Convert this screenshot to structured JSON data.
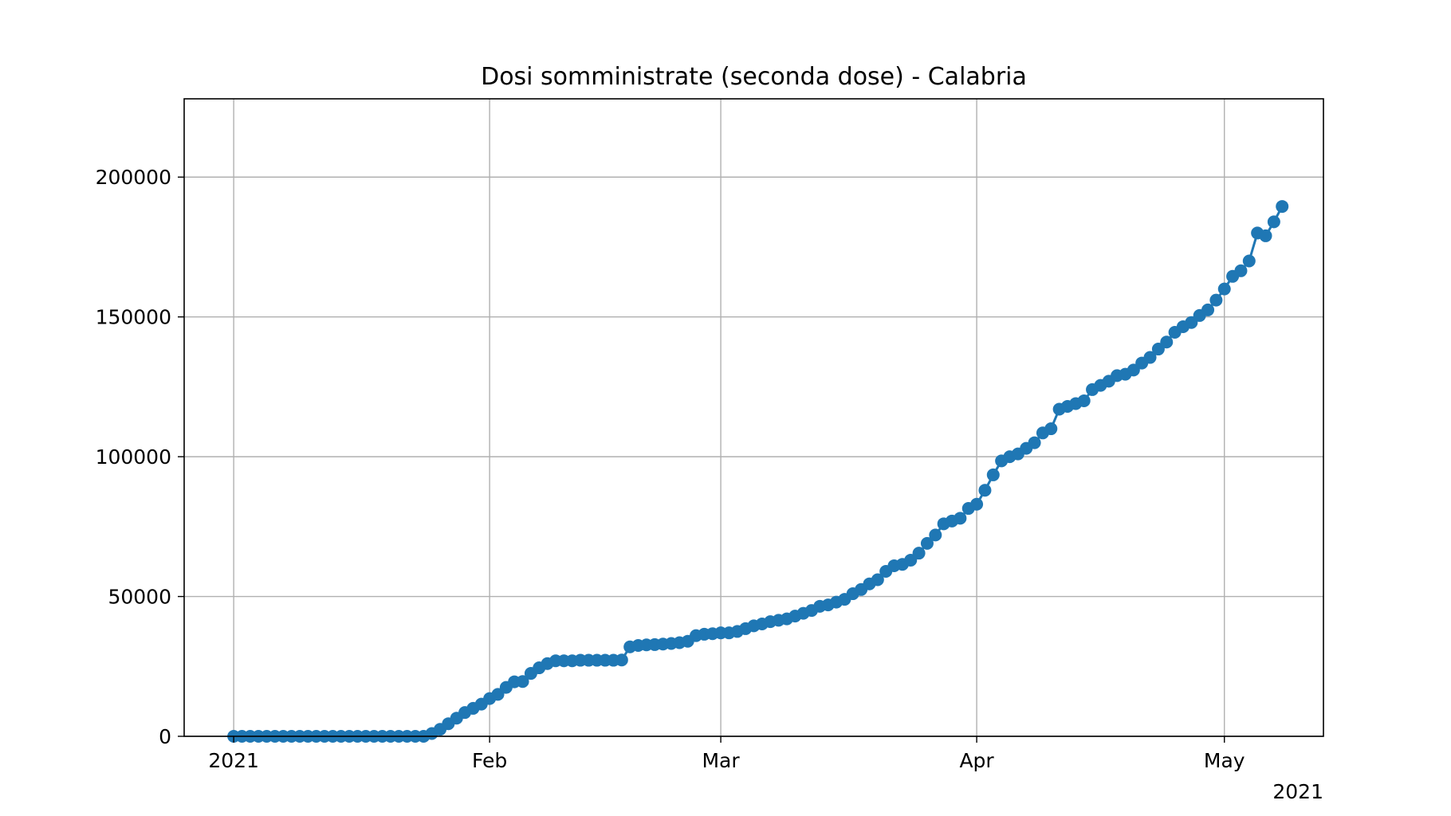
{
  "chart_data": {
    "type": "line",
    "title": "Dosi somministrate (seconda dose) - Calabria",
    "xlabel": "",
    "ylabel": "",
    "x_axis": {
      "type": "date",
      "ticks": [
        {
          "date": "2021-01-01",
          "label": "2021"
        },
        {
          "date": "2021-02-01",
          "label": "Feb"
        },
        {
          "date": "2021-03-01",
          "label": "Mar"
        },
        {
          "date": "2021-04-01",
          "label": "Apr"
        },
        {
          "date": "2021-05-01",
          "label": "May"
        }
      ],
      "offset_label": "2021",
      "range": [
        "2020-12-26",
        "2021-05-13"
      ]
    },
    "y_axis": {
      "ticks": [
        0,
        50000,
        100000,
        150000,
        200000
      ],
      "tick_labels": [
        "0",
        "50000",
        "100000",
        "150000",
        "200000"
      ],
      "ylim": [
        0,
        228000
      ]
    },
    "grid": true,
    "legend": "none",
    "series": [
      {
        "color": "#1f77b4",
        "marker": "circle",
        "start_date": "2021-01-01",
        "values": [
          0,
          0,
          0,
          0,
          0,
          0,
          0,
          0,
          0,
          0,
          0,
          0,
          0,
          0,
          0,
          0,
          0,
          0,
          0,
          0,
          0,
          0,
          0,
          0,
          1000,
          2500,
          4500,
          6500,
          8500,
          10000,
          11500,
          13500,
          15000,
          17500,
          19500,
          19600,
          22500,
          24500,
          26000,
          27000,
          27000,
          27000,
          27200,
          27200,
          27200,
          27200,
          27200,
          27300,
          32000,
          32500,
          32700,
          32800,
          33000,
          33200,
          33500,
          34000,
          36000,
          36500,
          36700,
          37000,
          37000,
          37500,
          38500,
          39500,
          40200,
          41000,
          41500,
          42000,
          43000,
          44000,
          45000,
          46500,
          47000,
          48000,
          49000,
          51000,
          52500,
          54500,
          56000,
          59000,
          61000,
          61500,
          63000,
          65500,
          69000,
          72000,
          76000,
          77000,
          78000,
          81500,
          83000,
          88000,
          93500,
          98500,
          100000,
          101000,
          103000,
          105000,
          108500,
          110000,
          117000,
          118000,
          119000,
          120000,
          124000,
          125500,
          127000,
          129000,
          129500,
          131000,
          133500,
          135500,
          138500,
          141000,
          144500,
          146500,
          148000,
          150500,
          152500,
          156000,
          160000,
          164500,
          166500,
          170000,
          180000,
          179000,
          184000,
          189500
        ]
      }
    ]
  }
}
